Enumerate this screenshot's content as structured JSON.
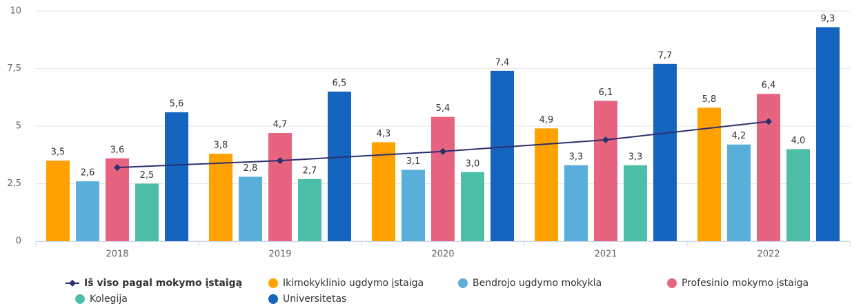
{
  "chart_data": {
    "type": "bar",
    "categories": [
      "2018",
      "2019",
      "2020",
      "2021",
      "2022"
    ],
    "ylim": [
      0,
      10
    ],
    "yticks": [
      0,
      {
        "value": 2.5,
        "label": "2,5"
      },
      5,
      {
        "value": 7.5,
        "label": "7,5"
      },
      10
    ],
    "grid": true,
    "series": [
      {
        "name": "Iš viso pagal mokymo įstaigą",
        "type": "line",
        "color": "#2b2f6e",
        "values": [
          3.2,
          3.5,
          3.9,
          4.4,
          5.2
        ]
      },
      {
        "name": "Ikimokyklinio ugdymo įstaiga",
        "color": "#ffa100",
        "values": [
          3.5,
          3.8,
          4.3,
          4.9,
          5.8
        ],
        "value_labels": [
          "3,5",
          "3,8",
          "4,3",
          "4,9",
          "5,8"
        ]
      },
      {
        "name": "Bendrojo ugdymo mokykla",
        "color": "#5aafda",
        "values": [
          2.6,
          2.8,
          3.1,
          3.3,
          4.2
        ],
        "value_labels": [
          "2,6",
          "2,8",
          "3,1",
          "3,3",
          "4,2"
        ]
      },
      {
        "name": "Profesinio mokymo įstaiga",
        "color": "#e6647f",
        "values": [
          3.6,
          4.7,
          5.4,
          6.1,
          6.4
        ],
        "value_labels": [
          "3,6",
          "4,7",
          "5,4",
          "6,1",
          "6,4"
        ]
      },
      {
        "name": "Kolegija",
        "color": "#4dbfa8",
        "values": [
          2.5,
          2.7,
          3.0,
          3.3,
          4.0
        ],
        "value_labels": [
          "2,5",
          "2,7",
          "3,0",
          "3,3",
          "4,0"
        ]
      },
      {
        "name": "Universitetas",
        "color": "#1565c0",
        "values": [
          5.6,
          6.5,
          7.4,
          7.7,
          9.3
        ],
        "value_labels": [
          "5,6",
          "6,5",
          "7,4",
          "7,7",
          "9,3"
        ]
      }
    ]
  }
}
